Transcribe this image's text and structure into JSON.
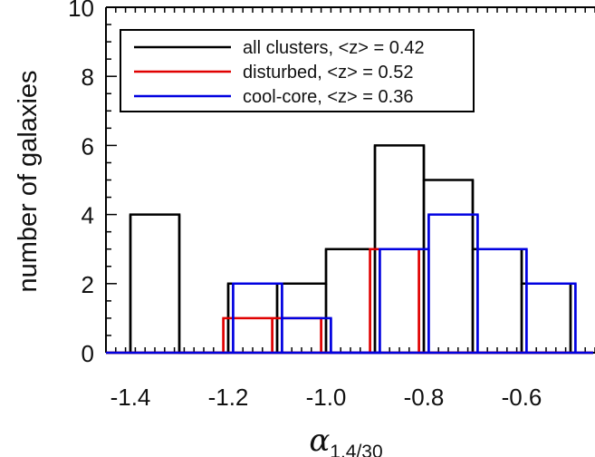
{
  "chart_data": {
    "type": "histogram",
    "ylabel": "number of galaxies",
    "xlabel_symbol": "α",
    "xlabel_subscript": "1.4/30",
    "xlim": [
      -1.45,
      -0.45
    ],
    "ylim": [
      0,
      10
    ],
    "xticks": [
      -1.4,
      -1.2,
      -1.0,
      -0.8,
      -0.6
    ],
    "xtick_labels": [
      "-1.4",
      "-1.2",
      "-1.0",
      "-0.8",
      "-0.6"
    ],
    "yticks": [
      0,
      2,
      4,
      6,
      8,
      10
    ],
    "ytick_labels": [
      "0",
      "2",
      "4",
      "6",
      "8",
      "10"
    ],
    "legend_position": "top-left",
    "series": [
      {
        "name": "all clusters, <z> = 0.42",
        "color": "#000000",
        "edges": [
          -1.4,
          -1.3,
          -1.2,
          -1.1,
          -1.0,
          -0.9,
          -0.8,
          -0.7,
          -0.6,
          -0.5
        ],
        "counts": [
          4,
          0,
          2,
          2,
          3,
          6,
          5,
          3,
          2
        ]
      },
      {
        "name": "disturbed, <z> = 0.52",
        "color": "#e00000",
        "edges": [
          -1.21,
          -1.11,
          -1.01,
          -0.91,
          -0.81,
          -0.71,
          -0.61,
          -0.51
        ],
        "counts": [
          1,
          1,
          0,
          3,
          0,
          0,
          0
        ]
      },
      {
        "name": "cool-core, <z> = 0.36",
        "color": "#0000e0",
        "edges": [
          -1.19,
          -1.09,
          -0.99,
          -0.89,
          -0.79,
          -0.69,
          -0.59,
          -0.49
        ],
        "counts": [
          2,
          1,
          0,
          3,
          4,
          3,
          2
        ]
      }
    ]
  }
}
